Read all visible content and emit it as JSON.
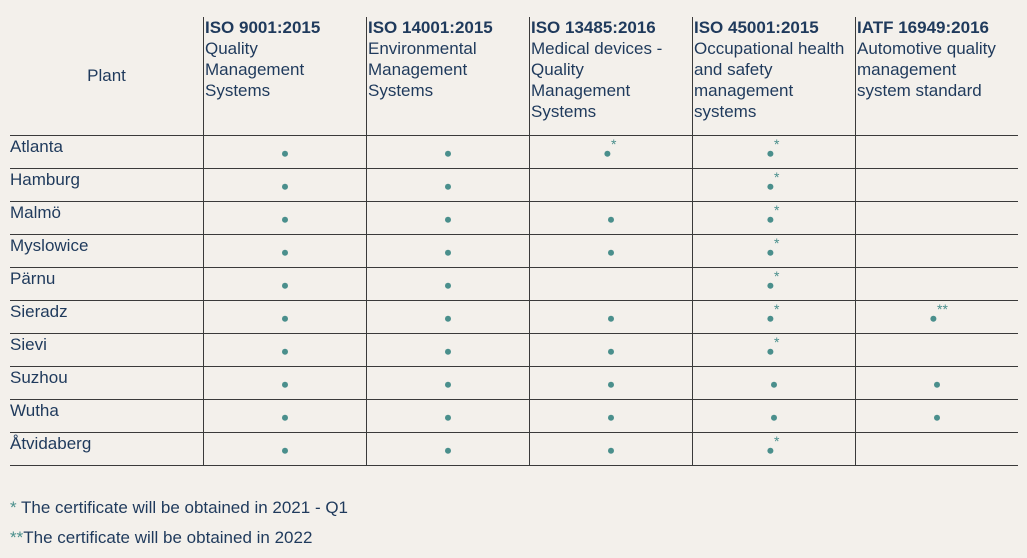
{
  "table": {
    "plant_header": "Plant",
    "standards": [
      {
        "code": "ISO 9001:2015",
        "desc": [
          "Quality",
          "Management",
          "Systems"
        ]
      },
      {
        "code": "ISO 14001:2015",
        "desc": [
          "Environmental",
          "Management",
          "Systems"
        ]
      },
      {
        "code": "ISO 13485:2016",
        "desc": [
          "Medical devices -",
          "Quality",
          "Management",
          "Systems"
        ]
      },
      {
        "code": "ISO 45001:2015",
        "desc": [
          "Occupational health",
          "and safety",
          "management",
          "systems"
        ]
      },
      {
        "code": "IATF 16949:2016",
        "desc": [
          "Automotive quality",
          "management",
          "system standard"
        ]
      }
    ],
    "rows": [
      {
        "plant": "Atlanta",
        "marks": [
          "dot",
          "dot",
          "dot*",
          "dot*",
          ""
        ]
      },
      {
        "plant": "Hamburg",
        "marks": [
          "dot",
          "dot",
          "",
          "dot*",
          ""
        ]
      },
      {
        "plant": "Malmö",
        "marks": [
          "dot",
          "dot",
          "dot",
          "dot*",
          ""
        ]
      },
      {
        "plant": "Myslowice",
        "marks": [
          "dot",
          "dot",
          "dot",
          "dot*",
          ""
        ]
      },
      {
        "plant": "Pärnu",
        "marks": [
          "dot",
          "dot",
          "",
          "dot*",
          ""
        ]
      },
      {
        "plant": "Sieradz",
        "marks": [
          "dot",
          "dot",
          "dot",
          "dot*",
          "dot**"
        ]
      },
      {
        "plant": "Sievi",
        "marks": [
          "dot",
          "dot",
          "dot",
          "dot*",
          ""
        ]
      },
      {
        "plant": "Suzhou",
        "marks": [
          "dot",
          "dot",
          "dot",
          "dot",
          "dot"
        ]
      },
      {
        "plant": "Wutha",
        "marks": [
          "dot",
          "dot",
          "dot",
          "dot",
          "dot"
        ]
      },
      {
        "plant": "Åtvidaberg",
        "marks": [
          "dot",
          "dot",
          "dot",
          "dot*",
          ""
        ]
      }
    ]
  },
  "notes": [
    {
      "symbol": "*",
      "text": " The certificate will be obtained in 2021 - Q1"
    },
    {
      "symbol": "**",
      "text": "The certificate will be obtained in 2022"
    }
  ],
  "colors": {
    "text": "#1f3a5c",
    "accent": "#4a8f8c",
    "background": "#f3f0eb"
  }
}
